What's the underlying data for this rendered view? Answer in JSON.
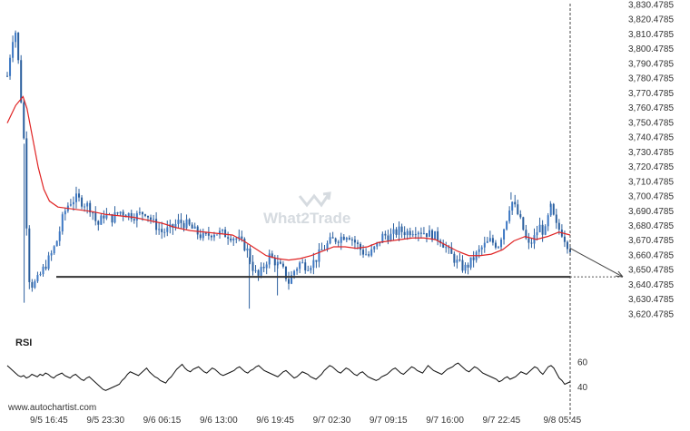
{
  "watermark": "What2Trade",
  "credit": "www.autochartist.com",
  "chart_data": [
    {
      "type": "candlestick",
      "ylim": [
        3615.4785,
        3830.4785
      ],
      "ytick_labels": [
        "3,830.4785",
        "3,820.4785",
        "3,810.4785",
        "3,800.4785",
        "3,790.4785",
        "3,780.4785",
        "3,770.4785",
        "3,760.4785",
        "3,750.4785",
        "3,740.4785",
        "3,730.4785",
        "3,720.4785",
        "3,710.4785",
        "3,700.4785",
        "3,690.4785",
        "3,680.4785",
        "3,670.4785",
        "3,660.4785",
        "3,650.4785",
        "3,640.4785",
        "3,630.4785",
        "3,620.4785"
      ],
      "ytick_values": [
        3830.4785,
        3820.4785,
        3810.4785,
        3800.4785,
        3790.4785,
        3780.4785,
        3770.4785,
        3760.4785,
        3750.4785,
        3740.4785,
        3730.4785,
        3720.4785,
        3710.4785,
        3700.4785,
        3690.4785,
        3680.4785,
        3670.4785,
        3660.4785,
        3650.4785,
        3640.4785,
        3630.4785,
        3620.4785
      ],
      "xtick_labels": [
        "9/5 16:45",
        "9/5 23:30",
        "9/6 06:15",
        "9/6 13:00",
        "9/6 19:45",
        "9/7 02:30",
        "9/7 09:15",
        "9/7 16:00",
        "9/7 22:45",
        "9/8 05:45"
      ],
      "xtick_positions": [
        0.0,
        0.108,
        0.216,
        0.324,
        0.432,
        0.54,
        0.648,
        0.756,
        0.864,
        0.98
      ],
      "support_level": 3645.6,
      "forecast": {
        "from_price": 3665,
        "to_price": 3645.6
      },
      "price_path": [
        [
          0.0,
          3782
        ],
        [
          0.008,
          3805
        ],
        [
          0.014,
          3815
        ],
        [
          0.02,
          3790
        ],
        [
          0.026,
          3758
        ],
        [
          0.032,
          3725
        ],
        [
          0.036,
          3650
        ],
        [
          0.042,
          3640
        ],
        [
          0.052,
          3642
        ],
        [
          0.06,
          3648
        ],
        [
          0.07,
          3655
        ],
        [
          0.08,
          3662
        ],
        [
          0.09,
          3672
        ],
        [
          0.1,
          3688
        ],
        [
          0.11,
          3696
        ],
        [
          0.122,
          3699
        ],
        [
          0.135,
          3696
        ],
        [
          0.15,
          3692
        ],
        [
          0.16,
          3680
        ],
        [
          0.172,
          3688
        ],
        [
          0.185,
          3685
        ],
        [
          0.2,
          3690
        ],
        [
          0.215,
          3688
        ],
        [
          0.23,
          3687
        ],
        [
          0.245,
          3690
        ],
        [
          0.26,
          3682
        ],
        [
          0.275,
          3676
        ],
        [
          0.29,
          3678
        ],
        [
          0.305,
          3683
        ],
        [
          0.32,
          3681
        ],
        [
          0.335,
          3676
        ],
        [
          0.35,
          3672
        ],
        [
          0.365,
          3676
        ],
        [
          0.38,
          3675
        ],
        [
          0.395,
          3674
        ],
        [
          0.41,
          3671
        ],
        [
          0.425,
          3665
        ],
        [
          0.435,
          3653
        ],
        [
          0.445,
          3645
        ],
        [
          0.455,
          3652
        ],
        [
          0.465,
          3660
        ],
        [
          0.478,
          3655
        ],
        [
          0.49,
          3650
        ],
        [
          0.5,
          3642
        ],
        [
          0.51,
          3650
        ],
        [
          0.52,
          3655
        ],
        [
          0.532,
          3653
        ],
        [
          0.545,
          3656
        ],
        [
          0.56,
          3664
        ],
        [
          0.575,
          3670
        ],
        [
          0.59,
          3672
        ],
        [
          0.605,
          3675
        ],
        [
          0.618,
          3669
        ],
        [
          0.63,
          3663
        ],
        [
          0.642,
          3660
        ],
        [
          0.655,
          3666
        ],
        [
          0.668,
          3674
        ],
        [
          0.68,
          3673
        ],
        [
          0.695,
          3677
        ],
        [
          0.71,
          3676
        ],
        [
          0.725,
          3678
        ],
        [
          0.74,
          3676
        ],
        [
          0.755,
          3674
        ],
        [
          0.77,
          3671
        ],
        [
          0.785,
          3662
        ],
        [
          0.8,
          3655
        ],
        [
          0.812,
          3651
        ],
        [
          0.822,
          3655
        ],
        [
          0.832,
          3660
        ],
        [
          0.845,
          3666
        ],
        [
          0.858,
          3670
        ],
        [
          0.872,
          3667
        ],
        [
          0.885,
          3682
        ],
        [
          0.895,
          3698
        ],
        [
          0.905,
          3690
        ],
        [
          0.915,
          3680
        ],
        [
          0.925,
          3666
        ],
        [
          0.935,
          3671
        ],
        [
          0.945,
          3680
        ],
        [
          0.955,
          3675
        ],
        [
          0.965,
          3693
        ],
        [
          0.975,
          3680
        ],
        [
          0.985,
          3676
        ],
        [
          0.995,
          3668
        ],
        [
          1.0,
          3665
        ]
      ],
      "ma_path": [
        [
          0.0,
          3750
        ],
        [
          0.015,
          3762
        ],
        [
          0.028,
          3768
        ],
        [
          0.035,
          3760
        ],
        [
          0.045,
          3740
        ],
        [
          0.055,
          3720
        ],
        [
          0.065,
          3705
        ],
        [
          0.075,
          3697
        ],
        [
          0.09,
          3693
        ],
        [
          0.11,
          3692
        ],
        [
          0.13,
          3691
        ],
        [
          0.15,
          3690
        ],
        [
          0.175,
          3688
        ],
        [
          0.2,
          3687
        ],
        [
          0.225,
          3686
        ],
        [
          0.25,
          3684
        ],
        [
          0.275,
          3682
        ],
        [
          0.3,
          3679
        ],
        [
          0.325,
          3677
        ],
        [
          0.35,
          3676
        ],
        [
          0.375,
          3675
        ],
        [
          0.4,
          3674
        ],
        [
          0.42,
          3670
        ],
        [
          0.44,
          3665
        ],
        [
          0.46,
          3660
        ],
        [
          0.48,
          3658
        ],
        [
          0.5,
          3657
        ],
        [
          0.52,
          3658
        ],
        [
          0.54,
          3660
        ],
        [
          0.56,
          3663
        ],
        [
          0.58,
          3666
        ],
        [
          0.6,
          3666
        ],
        [
          0.62,
          3665
        ],
        [
          0.64,
          3666
        ],
        [
          0.66,
          3669
        ],
        [
          0.68,
          3670
        ],
        [
          0.7,
          3671
        ],
        [
          0.72,
          3672
        ],
        [
          0.74,
          3672
        ],
        [
          0.76,
          3671
        ],
        [
          0.78,
          3667
        ],
        [
          0.8,
          3663
        ],
        [
          0.82,
          3660
        ],
        [
          0.84,
          3660
        ],
        [
          0.86,
          3661
        ],
        [
          0.88,
          3664
        ],
        [
          0.9,
          3670
        ],
        [
          0.92,
          3673
        ],
        [
          0.94,
          3671
        ],
        [
          0.96,
          3673
        ],
        [
          0.98,
          3676
        ],
        [
          1.0,
          3674
        ]
      ]
    },
    {
      "type": "line",
      "title": "RSI",
      "ylim": [
        30,
        70
      ],
      "ytick_labels": [
        "60",
        "40"
      ],
      "ytick_values": [
        60,
        40
      ],
      "values": [
        57,
        55,
        53,
        51,
        49,
        48,
        49,
        47,
        48,
        50,
        49,
        48,
        50,
        49,
        51,
        50,
        48,
        47,
        49,
        50,
        51,
        49,
        48,
        47,
        49,
        50,
        48,
        46,
        45,
        47,
        48,
        46,
        44,
        42,
        40,
        38,
        37,
        38,
        39,
        40,
        41,
        42,
        45,
        47,
        50,
        52,
        51,
        50,
        49,
        51,
        53,
        55,
        52,
        50,
        48,
        47,
        45,
        44,
        43,
        46,
        48,
        51,
        54,
        56,
        58,
        55,
        53,
        52,
        54,
        55,
        56,
        54,
        52,
        51,
        53,
        55,
        54,
        52,
        50,
        49,
        50,
        51,
        52,
        53,
        55,
        56,
        54,
        52,
        51,
        53,
        54,
        56,
        57,
        55,
        53,
        52,
        51,
        50,
        49,
        48,
        50,
        52,
        53,
        51,
        49,
        47,
        48,
        50,
        52,
        51,
        50,
        48,
        47,
        46,
        48,
        50,
        53,
        55,
        57,
        56,
        54,
        52,
        51,
        53,
        55,
        54,
        52,
        50,
        49,
        51,
        52,
        50,
        48,
        47,
        46,
        45,
        46,
        48,
        49,
        50,
        52,
        54,
        55,
        53,
        51,
        50,
        52,
        54,
        56,
        55,
        53,
        52,
        51,
        54,
        57,
        55,
        53,
        52,
        51,
        50,
        52,
        54,
        55,
        56,
        58,
        59,
        57,
        55,
        53,
        52,
        54,
        56,
        55,
        53,
        51,
        50,
        49,
        48,
        47,
        46,
        44,
        45,
        47,
        48,
        46,
        47,
        48,
        50,
        52,
        51,
        50,
        52,
        54,
        56,
        55,
        52,
        50,
        53,
        56,
        57,
        55,
        51,
        47,
        45,
        42,
        43,
        44
      ]
    }
  ]
}
